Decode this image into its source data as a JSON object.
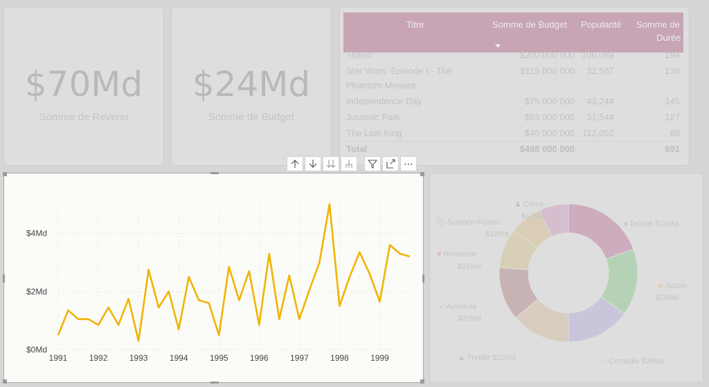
{
  "cards": [
    {
      "value": "$70Md",
      "label": "Somme de Revenu"
    },
    {
      "value": "$24Md",
      "label": "Somme de Budget"
    }
  ],
  "table": {
    "headers": [
      "Titre",
      "Somme de Budget",
      "Popularité",
      "Somme de",
      "Durée"
    ],
    "rows": [
      {
        "title": "Titanic",
        "title2": "",
        "budget": "$200 000 000",
        "popularity": "106,089",
        "duration": "194"
      },
      {
        "title": "Star Wars: Episode I - The",
        "title2": "Phantom Menace",
        "budget": "$115 000 000",
        "popularity": "32,567",
        "duration": "136"
      },
      {
        "title": "Independence Day",
        "title2": "",
        "budget": "$75 000 000",
        "popularity": "43,244",
        "duration": "145"
      },
      {
        "title": "Jurassic Park",
        "title2": "",
        "budget": "$63 000 000",
        "popularity": "31,544",
        "duration": "127"
      },
      {
        "title": "The Lion King",
        "title2": "",
        "budget": "$45 000 000",
        "popularity": "112,052",
        "duration": "89"
      }
    ],
    "total": {
      "label": "Total",
      "budget": "$498 000 000",
      "duration": "691"
    }
  },
  "toolbar": {
    "icons": [
      "arrow-up-icon",
      "arrow-down-icon",
      "double-arrow-down-icon",
      "expand-hierarchy-icon",
      "filter-icon",
      "focus-mode-icon",
      "more-options-icon"
    ],
    "more_label": "⋯"
  },
  "chart_data": [
    {
      "type": "line",
      "title": "",
      "xlabel": "",
      "ylabel": "",
      "x_ticks": [
        "1991",
        "1992",
        "1993",
        "1994",
        "1995",
        "1996",
        "1997",
        "1998",
        "1999"
      ],
      "y_ticks": [
        "$0Md",
        "$2Md",
        "$4Md"
      ],
      "ylim": [
        0,
        5.2
      ],
      "xlim": [
        1991,
        1999.75
      ],
      "grid": true,
      "color": "#f0b400",
      "series": [
        {
          "x": [
            1991,
            1991.25,
            1991.5,
            1991.75,
            1992,
            1992.25,
            1992.5,
            1992.75,
            1993,
            1993.25,
            1993.5,
            1993.75,
            1994,
            1994.25,
            1994.5,
            1994.75,
            1995,
            1995.25,
            1995.5,
            1995.75,
            1996,
            1996.25,
            1996.5,
            1996.75,
            1997,
            1997.25,
            1997.5,
            1997.75,
            1998,
            1998.25,
            1998.5,
            1998.75,
            1999,
            1999.25,
            1999.5,
            1999.75
          ],
          "values": [
            0.5,
            1.35,
            1.05,
            1.05,
            0.85,
            1.45,
            0.85,
            1.75,
            0.3,
            2.75,
            1.45,
            2.0,
            0.7,
            2.5,
            1.7,
            1.6,
            0.5,
            2.85,
            1.7,
            2.7,
            0.85,
            3.3,
            1.05,
            2.55,
            1.05,
            2.05,
            3.0,
            5.0,
            1.5,
            2.5,
            3.35,
            2.6,
            1.65,
            3.6,
            3.3,
            3.2
          ]
        }
      ]
    },
    {
      "type": "pie",
      "title": "",
      "donut": true,
      "labels": [
        "Drame",
        "Action",
        "Comédie",
        "Thriller",
        "Aventure",
        "Romance",
        "Science-Fiction",
        "Crime"
      ],
      "values": [
        31,
        25,
        24,
        22,
        20,
        15,
        12,
        11
      ],
      "value_labels": [
        "$31Md",
        "$25Md",
        "$24Md",
        "$22Md",
        "$20Md",
        "$15Md",
        "$12Md",
        "$11Md"
      ],
      "colors": [
        "#ccacbd",
        "#b6d2b6",
        "#c9c6dc",
        "#d9cdbf",
        "#c7b3b3",
        "#d8d0b6",
        "#dacdb5",
        "#d7bece"
      ]
    }
  ],
  "donut_labels": {
    "drame": "Drame $31Md",
    "action_name": "Action",
    "action_value": "$25Md",
    "comedie": "Comédie $24Md",
    "thriller": "Thriller $22Md",
    "aventure_name": "Aventure",
    "aventure_value": "$20Md",
    "romance_name": "Romance",
    "romance_value": "$15Md",
    "scifi_name": "Science-Fiction",
    "scifi_value": "$12Md",
    "crime_name": "Crime",
    "crime_value": "$11Md"
  }
}
